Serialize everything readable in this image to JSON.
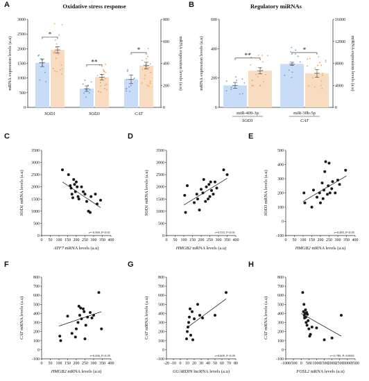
{
  "colors": {
    "blue_bar": "#c9dcf7",
    "orange_bar": "#f8dcc1",
    "blue_dot": "#5b9bd5",
    "orange_dot": "#f0a050",
    "dot": "#1a1a1a"
  },
  "chart_data": [
    {
      "id": "A",
      "type": "bar",
      "letter": "A",
      "title": "Oxidative stress response",
      "ylabel": "mRNA expression levels (a.u)",
      "y2label": "mRNA expression levels (a.u)",
      "ylim": [
        0,
        3000
      ],
      "yticks": [
        0,
        500,
        1000,
        1500,
        2000,
        2500,
        3000
      ],
      "y2lim": [
        0,
        800
      ],
      "y2ticks": [
        0,
        200,
        400,
        600,
        800
      ],
      "groups": [
        {
          "label": "SOD1",
          "axis": "left",
          "bars": [
            {
              "value": 1520,
              "err": 130,
              "color": "blue"
            },
            {
              "value": 1960,
              "err": 110,
              "color": "orange"
            }
          ],
          "sig": "*"
        },
        {
          "label": "SOD3",
          "axis": "right",
          "bars": [
            {
              "value": 170,
              "err": 25,
              "color": "blue"
            },
            {
              "value": 275,
              "err": 25,
              "color": "orange"
            }
          ],
          "sig": "**"
        },
        {
          "label": "CAT",
          "axis": "right",
          "bars": [
            {
              "value": 255,
              "err": 40,
              "color": "blue"
            },
            {
              "value": 380,
              "err": 30,
              "color": "orange"
            }
          ],
          "sig": "*"
        }
      ]
    },
    {
      "id": "B",
      "type": "bar",
      "letter": "B",
      "title": "Regulatory miRNAs",
      "ylabel": "mRNA expression levels (a.u)",
      "y2label": "miRNA expression levels (a.u)",
      "ylim": [
        0,
        600
      ],
      "yticks": [
        0,
        200,
        400,
        600
      ],
      "y2lim": [
        0,
        16000
      ],
      "y2ticks": [
        0,
        4000,
        8000,
        12000,
        16000
      ],
      "groups": [
        {
          "label": "miR-409-3p",
          "sublabel": "SOD1",
          "bars": [
            {
              "value": 150,
              "err": 20,
              "color": "blue",
              "axis": "left"
            },
            {
              "value": 250,
              "err": 20,
              "color": "orange",
              "axis": "left"
            }
          ],
          "sig": "**"
        },
        {
          "label": "miR-30b-5p",
          "sublabel": "CAT",
          "bars": [
            {
              "value": 7900,
              "err": 300,
              "color": "blue",
              "axis": "right"
            },
            {
              "value": 6200,
              "err": 700,
              "color": "orange",
              "axis": "right"
            }
          ],
          "sig": "*"
        }
      ]
    },
    {
      "id": "C",
      "type": "scatter",
      "letter": "C",
      "xlabel_gene": "ATF7",
      "xlabel_rest": " mRNA levels (a.u)",
      "ylabel_gene": "SOD1",
      "ylabel_rest": " mRNA levels (a.u)",
      "xlim": [
        0,
        400
      ],
      "xticks": [
        0,
        50,
        100,
        150,
        200,
        250,
        300,
        350,
        400
      ],
      "ylim": [
        0,
        3500
      ],
      "yticks": [
        0,
        500,
        1000,
        1500,
        2000,
        2500,
        3000,
        3500
      ],
      "stat": "r=-0.569, P<0.01",
      "points": [
        [
          120,
          2700
        ],
        [
          155,
          2500
        ],
        [
          165,
          2050
        ],
        [
          170,
          1950
        ],
        [
          175,
          1700
        ],
        [
          180,
          1550
        ],
        [
          185,
          2300
        ],
        [
          190,
          2100
        ],
        [
          195,
          1800
        ],
        [
          200,
          2200
        ],
        [
          205,
          2000
        ],
        [
          210,
          1600
        ],
        [
          215,
          1500
        ],
        [
          230,
          2000
        ],
        [
          240,
          1800
        ],
        [
          250,
          1700
        ],
        [
          260,
          1400
        ],
        [
          270,
          1000
        ],
        [
          280,
          950
        ],
        [
          285,
          1600
        ],
        [
          310,
          1700
        ],
        [
          320,
          1300
        ],
        [
          340,
          1450
        ]
      ],
      "line": [
        [
          120,
          2200
        ],
        [
          340,
          1150
        ]
      ]
    },
    {
      "id": "D",
      "type": "scatter",
      "letter": "D",
      "xlabel_gene": "HMGB2",
      "xlabel_rest": " mRNA levels (a.u)",
      "ylabel_gene": "SOD1",
      "ylabel_rest": " mRNA levels (a.u)",
      "xlim": [
        0,
        400
      ],
      "xticks": [
        0,
        50,
        100,
        150,
        200,
        250,
        300,
        350,
        400
      ],
      "ylim": [
        0,
        3500
      ],
      "yticks": [
        0,
        500,
        1000,
        1500,
        2000,
        2500,
        3000,
        3500
      ],
      "stat": "r=0.533, P<0.01",
      "points": [
        [
          105,
          1650
        ],
        [
          110,
          950
        ],
        [
          120,
          2050
        ],
        [
          160,
          1350
        ],
        [
          175,
          1700
        ],
        [
          180,
          1500
        ],
        [
          190,
          1050
        ],
        [
          200,
          1900
        ],
        [
          210,
          1750
        ],
        [
          215,
          2300
        ],
        [
          225,
          1400
        ],
        [
          230,
          2000
        ],
        [
          240,
          1500
        ],
        [
          245,
          2100
        ],
        [
          250,
          1600
        ],
        [
          255,
          2200
        ],
        [
          260,
          1850
        ],
        [
          270,
          1700
        ],
        [
          280,
          2200
        ],
        [
          290,
          1950
        ],
        [
          330,
          2700
        ],
        [
          350,
          2500
        ]
      ],
      "line": [
        [
          100,
          1250
        ],
        [
          350,
          2350
        ]
      ]
    },
    {
      "id": "E",
      "type": "scatter",
      "letter": "E",
      "xlabel_gene": "HMGB2",
      "xlabel_rest": " mRNA levels (a.u)",
      "ylabel_gene": "SOD3",
      "ylabel_rest": " mRNA levels (a.u)",
      "xlim": [
        0,
        400
      ],
      "xticks": [
        0,
        50,
        100,
        150,
        200,
        250,
        300,
        350,
        400
      ],
      "ylim": [
        -100,
        500
      ],
      "yticks": [
        -100,
        0,
        100,
        200,
        300,
        400,
        500
      ],
      "stat": "r=0.485, P<0.05",
      "points": [
        [
          105,
          200
        ],
        [
          110,
          130
        ],
        [
          150,
          100
        ],
        [
          160,
          220
        ],
        [
          180,
          170
        ],
        [
          195,
          200
        ],
        [
          200,
          130
        ],
        [
          210,
          270
        ],
        [
          215,
          160
        ],
        [
          220,
          220
        ],
        [
          225,
          350
        ],
        [
          230,
          420
        ],
        [
          240,
          190
        ],
        [
          245,
          250
        ],
        [
          250,
          410
        ],
        [
          255,
          200
        ],
        [
          265,
          230
        ],
        [
          270,
          280
        ],
        [
          285,
          200
        ],
        [
          300,
          290
        ],
        [
          310,
          260
        ],
        [
          345,
          360
        ]
      ],
      "line": [
        [
          100,
          140
        ],
        [
          350,
          320
        ]
      ]
    },
    {
      "id": "F",
      "type": "scatter",
      "letter": "F",
      "xlabel_gene": "HMGB2",
      "xlabel_rest": " mRNA levels (a.u)",
      "ylabel_gene": "CAT",
      "ylabel_rest": " mRNA levels (a.u)",
      "xlim": [
        0,
        400
      ],
      "xticks": [
        0,
        50,
        100,
        150,
        200,
        250,
        300,
        350,
        400
      ],
      "ylim": [
        -100,
        800
      ],
      "yticks": [
        -100,
        0,
        100,
        200,
        300,
        400,
        500,
        600,
        700,
        800
      ],
      "stat": "r=0.436, P<0.05",
      "points": [
        [
          105,
          150
        ],
        [
          110,
          100
        ],
        [
          150,
          370
        ],
        [
          175,
          180
        ],
        [
          195,
          140
        ],
        [
          200,
          230
        ],
        [
          210,
          300
        ],
        [
          215,
          480
        ],
        [
          220,
          380
        ],
        [
          225,
          460
        ],
        [
          230,
          340
        ],
        [
          240,
          450
        ],
        [
          245,
          420
        ],
        [
          250,
          120
        ],
        [
          255,
          270
        ],
        [
          265,
          360
        ],
        [
          280,
          410
        ],
        [
          290,
          350
        ],
        [
          300,
          380
        ],
        [
          330,
          630
        ],
        [
          345,
          230
        ]
      ],
      "line": [
        [
          100,
          260
        ],
        [
          345,
          420
        ]
      ]
    },
    {
      "id": "G",
      "type": "scatter",
      "letter": "G",
      "xlabel_gene": "GUARDIN",
      "xlabel_rest": " lncRNA levels (a.u)",
      "ylabel_gene": "CAT",
      "ylabel_rest": " mRNA levels (a.u)",
      "xlim": [
        -20,
        80
      ],
      "xticks": [
        -20,
        -10,
        0,
        10,
        20,
        30,
        40,
        50,
        60,
        70,
        80
      ],
      "ylim": [
        -100,
        800
      ],
      "yticks": [
        -100,
        0,
        100,
        200,
        300,
        400,
        500,
        600,
        700,
        800
      ],
      "stat": "r=0.609, P<0.05",
      "points": [
        [
          9,
          120
        ],
        [
          10,
          200
        ],
        [
          11,
          250
        ],
        [
          12,
          300
        ],
        [
          13,
          360
        ],
        [
          14,
          450
        ],
        [
          15,
          160
        ],
        [
          17,
          420
        ],
        [
          18,
          110
        ],
        [
          20,
          340
        ],
        [
          25,
          500
        ],
        [
          28,
          380
        ],
        [
          32,
          350
        ],
        [
          50,
          380
        ],
        [
          66,
          630
        ]
      ],
      "line": [
        [
          9,
          240
        ],
        [
          66,
          560
        ]
      ]
    },
    {
      "id": "H",
      "type": "scatter",
      "letter": "H",
      "xlabel_gene": "FOSL2",
      "xlabel_rest": " mRNA levels (a.u)",
      "ylabel_gene": "CAT",
      "ylabel_rest": " mRNA levels (a.u)",
      "xlim": [
        -1000,
        3500
      ],
      "xticks": [
        -1000,
        -500,
        0,
        500,
        1000,
        1500,
        2000,
        2500,
        3000,
        3500
      ],
      "ylim": [
        -100,
        800
      ],
      "yticks": [
        -100,
        0,
        100,
        200,
        300,
        400,
        500,
        600,
        700,
        800
      ],
      "stat": "r=-0.780, P<0.0001",
      "points": [
        [
          100,
          630
        ],
        [
          150,
          420
        ],
        [
          180,
          500
        ],
        [
          200,
          380
        ],
        [
          220,
          350
        ],
        [
          250,
          400
        ],
        [
          280,
          440
        ],
        [
          300,
          360
        ],
        [
          320,
          300
        ],
        [
          350,
          410
        ],
        [
          380,
          270
        ],
        [
          400,
          390
        ],
        [
          450,
          320
        ],
        [
          500,
          230
        ],
        [
          550,
          150
        ],
        [
          600,
          170
        ],
        [
          700,
          250
        ],
        [
          1000,
          240
        ],
        [
          1500,
          110
        ],
        [
          2000,
          130
        ],
        [
          2600,
          380
        ]
      ],
      "line": [
        [
          0,
          400
        ],
        [
          2600,
          150
        ]
      ]
    }
  ]
}
